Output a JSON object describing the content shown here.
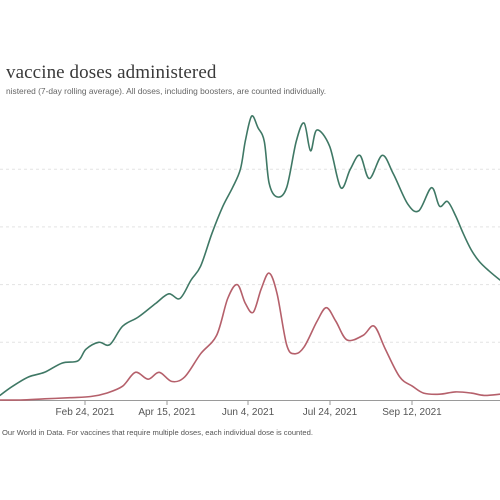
{
  "header": {
    "title": "vaccine doses administered",
    "subtitle": "nistered (7-day rolling average). All doses, including boosters, are counted individually."
  },
  "footer": {
    "source_text": "Our World in Data. For vaccines that require multiple doses, each individual dose is counted."
  },
  "colors": {
    "series_a": "#3f7865",
    "series_b": "#b5606b",
    "grid": "#e3e3e3",
    "axis": "#9a9a9a"
  },
  "chart_data": {
    "type": "line",
    "title": "vaccine doses administered",
    "subtitle": "nistered (7-day rolling average). All doses, including boosters, are counted individually.",
    "xlabel": "",
    "ylabel": "",
    "x_tick_labels": [
      "Feb 24, 2021",
      "Apr 15, 2021",
      "Jun 4, 2021",
      "Jul 24, 2021",
      "Sep 12, 2021"
    ],
    "x_range": [
      "2021-01-02",
      "2021-11-12"
    ],
    "y_range": [
      0,
      130
    ],
    "grid": "horizontal",
    "y_gridlines": [
      0,
      25,
      50,
      75,
      100
    ],
    "legend": "none",
    "series": [
      {
        "color": "#3f7865",
        "points": [
          [
            "2021-01-02",
            2
          ],
          [
            "2021-01-10",
            6
          ],
          [
            "2021-01-20",
            10
          ],
          [
            "2021-01-30",
            12
          ],
          [
            "2021-02-10",
            16
          ],
          [
            "2021-02-20",
            17
          ],
          [
            "2021-02-25",
            22
          ],
          [
            "2021-03-05",
            25
          ],
          [
            "2021-03-12",
            24
          ],
          [
            "2021-03-20",
            32
          ],
          [
            "2021-03-30",
            36
          ],
          [
            "2021-04-10",
            42
          ],
          [
            "2021-04-18",
            46
          ],
          [
            "2021-04-25",
            44
          ],
          [
            "2021-05-02",
            52
          ],
          [
            "2021-05-08",
            58
          ],
          [
            "2021-05-15",
            72
          ],
          [
            "2021-05-22",
            84
          ],
          [
            "2021-05-28",
            92
          ],
          [
            "2021-06-02",
            100
          ],
          [
            "2021-06-05",
            112
          ],
          [
            "2021-06-09",
            123
          ],
          [
            "2021-06-13",
            118
          ],
          [
            "2021-06-17",
            112
          ],
          [
            "2021-06-20",
            94
          ],
          [
            "2021-06-25",
            88
          ],
          [
            "2021-07-01",
            92
          ],
          [
            "2021-07-07",
            112
          ],
          [
            "2021-07-12",
            120
          ],
          [
            "2021-07-16",
            108
          ],
          [
            "2021-07-20",
            117
          ],
          [
            "2021-07-28",
            110
          ],
          [
            "2021-08-04",
            92
          ],
          [
            "2021-08-10",
            100
          ],
          [
            "2021-08-16",
            106
          ],
          [
            "2021-08-22",
            96
          ],
          [
            "2021-08-30",
            106
          ],
          [
            "2021-09-06",
            98
          ],
          [
            "2021-09-15",
            85
          ],
          [
            "2021-09-22",
            82
          ],
          [
            "2021-09-30",
            92
          ],
          [
            "2021-10-05",
            84
          ],
          [
            "2021-10-10",
            86
          ],
          [
            "2021-10-15",
            80
          ],
          [
            "2021-10-20",
            72
          ],
          [
            "2021-10-25",
            65
          ],
          [
            "2021-10-30",
            60
          ],
          [
            "2021-11-05",
            56
          ],
          [
            "2021-11-12",
            52
          ]
        ]
      },
      {
        "color": "#b5606b",
        "points": [
          [
            "2021-01-02",
            0
          ],
          [
            "2021-01-15",
            0
          ],
          [
            "2021-01-30",
            0.5
          ],
          [
            "2021-02-15",
            1
          ],
          [
            "2021-02-28",
            1.5
          ],
          [
            "2021-03-10",
            3
          ],
          [
            "2021-03-20",
            6
          ],
          [
            "2021-03-28",
            12
          ],
          [
            "2021-04-05",
            9
          ],
          [
            "2021-04-12",
            12
          ],
          [
            "2021-04-20",
            8
          ],
          [
            "2021-04-28",
            10
          ],
          [
            "2021-05-08",
            20
          ],
          [
            "2021-05-18",
            28
          ],
          [
            "2021-05-25",
            44
          ],
          [
            "2021-05-31",
            50
          ],
          [
            "2021-06-05",
            42
          ],
          [
            "2021-06-10",
            38
          ],
          [
            "2021-06-15",
            48
          ],
          [
            "2021-06-20",
            55
          ],
          [
            "2021-06-25",
            46
          ],
          [
            "2021-07-01",
            24
          ],
          [
            "2021-07-06",
            20
          ],
          [
            "2021-07-12",
            23
          ],
          [
            "2021-07-20",
            34
          ],
          [
            "2021-07-26",
            40
          ],
          [
            "2021-08-01",
            34
          ],
          [
            "2021-08-08",
            26
          ],
          [
            "2021-08-18",
            28
          ],
          [
            "2021-08-25",
            32
          ],
          [
            "2021-09-01",
            22
          ],
          [
            "2021-09-10",
            10
          ],
          [
            "2021-09-18",
            6
          ],
          [
            "2021-09-25",
            3
          ],
          [
            "2021-10-05",
            2.5
          ],
          [
            "2021-10-15",
            3.5
          ],
          [
            "2021-10-25",
            3
          ],
          [
            "2021-11-02",
            2
          ],
          [
            "2021-11-12",
            2.5
          ]
        ]
      }
    ]
  }
}
